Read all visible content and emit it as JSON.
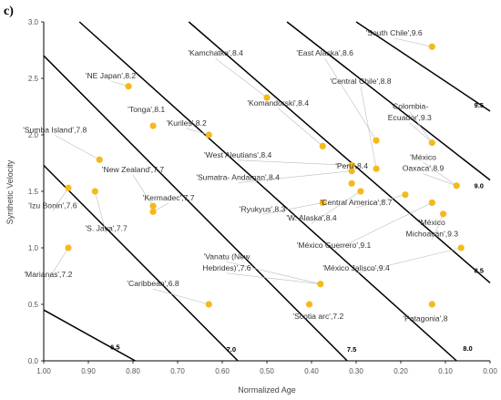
{
  "panel_label": "c)",
  "chart_data": {
    "type": "scatter",
    "xlabel": "Normalized Age",
    "ylabel": "Synthetic Velocity",
    "xlim": [
      1.0,
      0.0
    ],
    "ylim": [
      0.0,
      3.0
    ],
    "x_reversed": true,
    "xticks": [
      "1.00",
      "0.90",
      "0.80",
      "0.70",
      "0.60",
      "0.50",
      "0.40",
      "0.30",
      "0.20",
      "0.10",
      "0.00"
    ],
    "yticks": [
      "0.0",
      "0.5",
      "1.0",
      "1.5",
      "2.0",
      "2.5",
      "3.0"
    ],
    "grid": false,
    "marker_color": "#f5b91c",
    "isolines": [
      {
        "label": "6.5",
        "x0": 1.0,
        "y0": 0.45,
        "x1": 0.795,
        "y1": 0.0,
        "label_x": 0.84,
        "label_y": 0.1
      },
      {
        "label": "7.0",
        "x0": 1.0,
        "y0": 1.73,
        "x1": 0.565,
        "y1": 0.0,
        "label_x": 0.58,
        "label_y": 0.08
      },
      {
        "label": "7.5",
        "x0": 1.0,
        "y0": 2.7,
        "x1": 0.32,
        "y1": 0.0,
        "label_x": 0.31,
        "label_y": 0.08
      },
      {
        "label": "8.0",
        "x0": 0.92,
        "y0": 3.0,
        "x1": 0.075,
        "y1": 0.0,
        "label_x": 0.05,
        "label_y": 0.09
      },
      {
        "label": "8.5",
        "x0": 0.675,
        "y0": 3.0,
        "x1": 0.0,
        "y1": 0.69,
        "label_x": 0.025,
        "label_y": 0.78
      },
      {
        "label": "9.0",
        "x0": 0.455,
        "y0": 3.0,
        "x1": 0.0,
        "y1": 1.6,
        "label_x": 0.025,
        "label_y": 1.53
      },
      {
        "label": "9.5",
        "x0": 0.3,
        "y0": 3.0,
        "x1": 0.0,
        "y1": 2.21,
        "label_x": 0.025,
        "label_y": 2.24
      }
    ],
    "points": [
      {
        "label": "'South Chile',9.6",
        "x": 0.13,
        "y": 2.78,
        "lx": 0.215,
        "ly": 2.88
      },
      {
        "label": "'East Alaska',8.6",
        "x": 0.255,
        "y": 1.95,
        "lx": 0.37,
        "ly": 2.7
      },
      {
        "label": "'Central Chile',8.8",
        "x": 0.255,
        "y": 1.7,
        "lx": 0.29,
        "ly": 2.45
      },
      {
        "label": "'Colombia-",
        "x": 0.13,
        "y": 1.93,
        "lx": 0.18,
        "ly": 2.23
      },
      {
        "label": "Ecuador',9.3",
        "x": 0.13,
        "y": 1.93,
        "lx": 0.18,
        "ly": 2.13
      },
      {
        "label": "'México",
        "x": 0.075,
        "y": 1.55,
        "lx": 0.15,
        "ly": 1.78
      },
      {
        "label": "Oaxaca',8.9",
        "x": 0.075,
        "y": 1.55,
        "lx": 0.15,
        "ly": 1.68
      },
      {
        "label": "'Kamchatka',8.4",
        "x": 0.5,
        "y": 2.33,
        "lx": 0.615,
        "ly": 2.7
      },
      {
        "label": "'Komandorski',8.4",
        "x": 0.375,
        "y": 1.9,
        "lx": 0.475,
        "ly": 2.26
      },
      {
        "label": "'NE Japan',8.2",
        "x": 0.81,
        "y": 2.43,
        "lx": 0.85,
        "ly": 2.5
      },
      {
        "label": "'Tonga',8.1",
        "x": 0.755,
        "y": 2.08,
        "lx": 0.77,
        "ly": 2.2
      },
      {
        "label": "'Kuriles',8.2",
        "x": 0.63,
        "y": 2.0,
        "lx": 0.68,
        "ly": 2.08
      },
      {
        "label": "'Sumba Island',7.8",
        "x": 0.875,
        "y": 1.78,
        "lx": 0.975,
        "ly": 2.02
      },
      {
        "label": "'West Aleutians',8.4",
        "x": 0.31,
        "y": 1.73,
        "lx": 0.565,
        "ly": 1.8
      },
      {
        "label": "'Sumatra- Andaman',8.4",
        "x": 0.31,
        "y": 1.68,
        "lx": 0.565,
        "ly": 1.6
      },
      {
        "label": "'Peru',8.4",
        "x": 0.31,
        "y": 1.57,
        "lx": 0.31,
        "ly": 1.7
      },
      {
        "label": "'New Zealand',7.7",
        "x": 0.755,
        "y": 1.37,
        "lx": 0.8,
        "ly": 1.67
      },
      {
        "label": "'Kermadec',7.7",
        "x": 0.755,
        "y": 1.32,
        "lx": 0.72,
        "ly": 1.42
      },
      {
        "label": "'Izu Bonin',7.6",
        "x": 0.945,
        "y": 1.53,
        "lx": 0.98,
        "ly": 1.35
      },
      {
        "label": "'S. Java',7.7",
        "x": 0.885,
        "y": 1.5,
        "lx": 0.86,
        "ly": 1.15
      },
      {
        "label": "'Ryukyus',8.3",
        "x": 0.375,
        "y": 1.4,
        "lx": 0.51,
        "ly": 1.32
      },
      {
        "label": "'W. Alaska',8.4",
        "x": 0.29,
        "y": 1.5,
        "lx": 0.4,
        "ly": 1.24
      },
      {
        "label": "'Central America',8.7",
        "x": 0.19,
        "y": 1.47,
        "lx": 0.3,
        "ly": 1.38
      },
      {
        "label": "'México",
        "x": 0.105,
        "y": 1.3,
        "lx": 0.13,
        "ly": 1.2
      },
      {
        "label": "Michoacán',9.3",
        "x": 0.105,
        "y": 1.3,
        "lx": 0.13,
        "ly": 1.1
      },
      {
        "label": "'México Guerrero',9.1",
        "x": 0.13,
        "y": 1.4,
        "lx": 0.35,
        "ly": 1.0
      },
      {
        "label": "'México Jalisco',9.4",
        "x": 0.065,
        "y": 1.0,
        "lx": 0.3,
        "ly": 0.8
      },
      {
        "label": "'Marianas',7.2",
        "x": 0.945,
        "y": 1.0,
        "lx": 0.99,
        "ly": 0.74
      },
      {
        "label": "'Vanatu (New",
        "x": 0.38,
        "y": 0.68,
        "lx": 0.59,
        "ly": 0.9
      },
      {
        "label": "Hebrides)',7.6",
        "x": 0.38,
        "y": 0.68,
        "lx": 0.59,
        "ly": 0.8
      },
      {
        "label": "'Caribbean',6.8",
        "x": 0.63,
        "y": 0.5,
        "lx": 0.755,
        "ly": 0.66
      },
      {
        "label": "'Scotia arc',7.2",
        "x": 0.405,
        "y": 0.5,
        "lx": 0.385,
        "ly": 0.37
      },
      {
        "label": "'Patagonia',8",
        "x": 0.13,
        "y": 0.5,
        "lx": 0.145,
        "ly": 0.35
      }
    ]
  }
}
